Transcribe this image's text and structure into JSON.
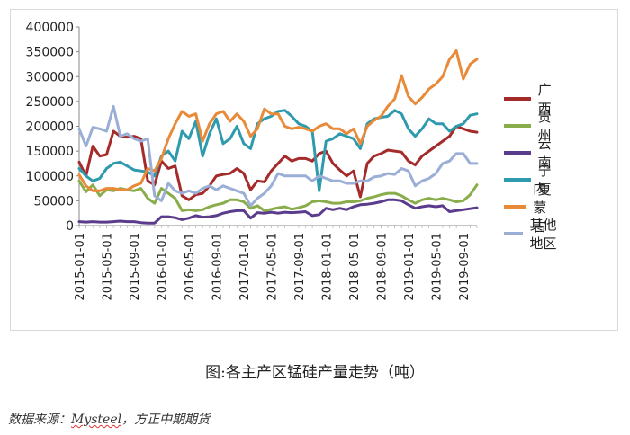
{
  "chart_data": {
    "type": "line",
    "x": [
      "2015-01-01",
      "2015-02-01",
      "2015-03-01",
      "2015-04-01",
      "2015-05-01",
      "2015-06-01",
      "2015-07-01",
      "2015-08-01",
      "2015-09-01",
      "2015-10-01",
      "2015-11-01",
      "2015-12-01",
      "2016-01-01",
      "2016-02-01",
      "2016-03-01",
      "2016-04-01",
      "2016-05-01",
      "2016-06-01",
      "2016-07-01",
      "2016-08-01",
      "2016-09-01",
      "2016-10-01",
      "2016-11-01",
      "2016-12-01",
      "2017-01-01",
      "2017-02-01",
      "2017-03-01",
      "2017-04-01",
      "2017-05-01",
      "2017-06-01",
      "2017-07-01",
      "2017-08-01",
      "2017-09-01",
      "2017-10-01",
      "2017-11-01",
      "2017-12-01",
      "2018-01-01",
      "2018-02-01",
      "2018-03-01",
      "2018-04-01",
      "2018-05-01",
      "2018-06-01",
      "2018-07-01",
      "2018-08-01",
      "2018-09-01",
      "2018-10-01",
      "2018-11-01",
      "2018-12-01",
      "2019-01-01",
      "2019-02-01",
      "2019-03-01",
      "2019-04-01",
      "2019-05-01",
      "2019-06-01",
      "2019-07-01",
      "2019-08-01",
      "2019-09-01",
      "2019-10-01",
      "2019-11-01"
    ],
    "xtick_labels": [
      "2015-01-01",
      "2015-05-01",
      "2015-09-01",
      "2016-01-01",
      "2016-05-01",
      "2016-09-01",
      "2017-01-01",
      "2017-05-01",
      "2017-09-01",
      "2018-01-01",
      "2018-05-01",
      "2018-09-01",
      "2019-01-01",
      "2019-05-01",
      "2019-09-01"
    ],
    "ylim": [
      0,
      400000
    ],
    "yticks": [
      "0",
      "50000",
      "100000",
      "150000",
      "200000",
      "250000",
      "300000",
      "350000",
      "400000"
    ],
    "series": [
      {
        "name": "广西",
        "color": "#a52a2a",
        "values": [
          128000,
          100000,
          160000,
          140000,
          143000,
          190000,
          180000,
          178000,
          180000,
          175000,
          90000,
          82000,
          130000,
          115000,
          120000,
          60000,
          52000,
          62000,
          65000,
          80000,
          100000,
          103000,
          105000,
          115000,
          105000,
          72000,
          90000,
          88000,
          110000,
          125000,
          140000,
          130000,
          135000,
          135000,
          130000,
          145000,
          150000,
          125000,
          112000,
          100000,
          110000,
          58000,
          125000,
          140000,
          145000,
          152000,
          150000,
          148000,
          130000,
          122000,
          140000,
          150000,
          160000,
          170000,
          180000,
          200000,
          195000,
          190000,
          188000
        ]
      },
      {
        "name": "贵州",
        "color": "#8aad4b",
        "values": [
          90000,
          68000,
          82000,
          60000,
          72000,
          70000,
          75000,
          72000,
          70000,
          75000,
          55000,
          45000,
          75000,
          65000,
          55000,
          30000,
          32000,
          30000,
          32000,
          38000,
          42000,
          45000,
          52000,
          52000,
          48000,
          35000,
          40000,
          30000,
          33000,
          36000,
          38000,
          33000,
          36000,
          40000,
          48000,
          50000,
          48000,
          45000,
          45000,
          48000,
          48000,
          50000,
          55000,
          58000,
          62000,
          65000,
          65000,
          60000,
          52000,
          45000,
          52000,
          55000,
          52000,
          55000,
          52000,
          48000,
          50000,
          62000,
          82000
        ]
      },
      {
        "name": "云南",
        "color": "#5b3c8c",
        "values": [
          8000,
          7000,
          8000,
          7000,
          7000,
          8000,
          9000,
          8000,
          8000,
          6000,
          5000,
          5000,
          18000,
          18000,
          16000,
          12000,
          15000,
          20000,
          17000,
          18000,
          20000,
          25000,
          28000,
          30000,
          30000,
          15000,
          26000,
          25000,
          27000,
          25000,
          27000,
          26000,
          27000,
          28000,
          20000,
          22000,
          35000,
          32000,
          35000,
          32000,
          38000,
          42000,
          43000,
          45000,
          48000,
          52000,
          52000,
          50000,
          42000,
          35000,
          38000,
          40000,
          38000,
          40000,
          28000,
          30000,
          32000,
          34000,
          36000
        ]
      },
      {
        "name": "宁夏",
        "color": "#2e9aad",
        "values": [
          115000,
          100000,
          90000,
          95000,
          115000,
          125000,
          128000,
          120000,
          112000,
          110000,
          108000,
          100000,
          140000,
          150000,
          130000,
          190000,
          175000,
          210000,
          140000,
          185000,
          215000,
          165000,
          175000,
          200000,
          165000,
          155000,
          205000,
          215000,
          220000,
          230000,
          232000,
          220000,
          205000,
          200000,
          190000,
          70000,
          170000,
          175000,
          185000,
          180000,
          175000,
          155000,
          205000,
          215000,
          218000,
          220000,
          232000,
          225000,
          195000,
          180000,
          195000,
          215000,
          205000,
          205000,
          190000,
          200000,
          205000,
          222000,
          225000
        ]
      },
      {
        "name": "内蒙古",
        "color": "#e88a38",
        "values": [
          102000,
          80000,
          70000,
          70000,
          75000,
          75000,
          72000,
          72000,
          80000,
          85000,
          115000,
          110000,
          135000,
          175000,
          205000,
          230000,
          220000,
          225000,
          170000,
          205000,
          225000,
          230000,
          210000,
          225000,
          210000,
          180000,
          195000,
          235000,
          225000,
          225000,
          200000,
          195000,
          198000,
          195000,
          190000,
          200000,
          205000,
          195000,
          195000,
          185000,
          195000,
          165000,
          200000,
          212000,
          220000,
          240000,
          255000,
          302000,
          260000,
          245000,
          258000,
          275000,
          285000,
          300000,
          335000,
          352000,
          295000,
          325000,
          335000
        ]
      },
      {
        "name": "其他地区",
        "color": "#9aaed6",
        "values": [
          195000,
          160000,
          198000,
          195000,
          190000,
          240000,
          180000,
          185000,
          175000,
          170000,
          175000,
          60000,
          50000,
          85000,
          70000,
          65000,
          70000,
          65000,
          75000,
          80000,
          72000,
          80000,
          75000,
          70000,
          65000,
          40000,
          55000,
          65000,
          80000,
          105000,
          100000,
          100000,
          100000,
          100000,
          90000,
          100000,
          95000,
          90000,
          90000,
          85000,
          85000,
          90000,
          90000,
          98000,
          100000,
          105000,
          103000,
          115000,
          110000,
          80000,
          90000,
          95000,
          105000,
          125000,
          130000,
          145000,
          145000,
          125000,
          125000
        ]
      }
    ]
  },
  "caption": "图:各主产区锰硅产量走势（吨）",
  "source": {
    "prefix": "数据来源：",
    "name": "Mysteel",
    "suffix": "，方正中期期货"
  }
}
